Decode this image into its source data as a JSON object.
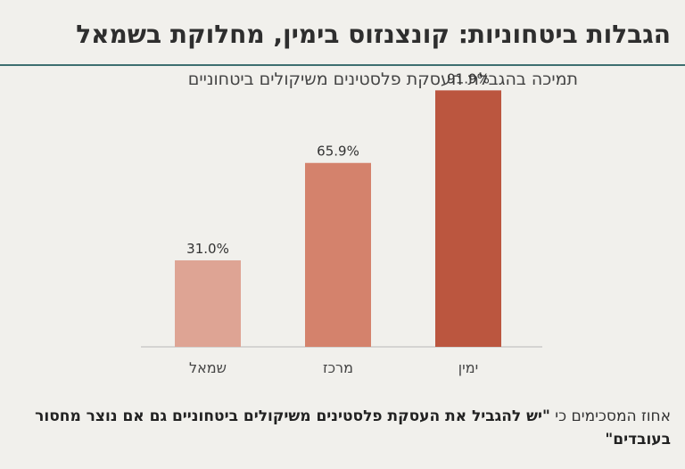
{
  "title": "הגבלות ביטחוניות: קונצנזוס בימין, מחלוקת בשמאל",
  "subtitle": "תמיכה בהגבלת העסקת פלסטינים משיקולים ביטחוניים",
  "footnote": {
    "prefix": "אחוז המסכימים כי ",
    "quote": "\"יש להגביל את העסקת פלסטינים משיקולים ביטחוניים גם אם נוצר מחסור בעובדים\""
  },
  "chart_data": {
    "type": "bar",
    "categories": [
      "שמאל",
      "מרכז",
      "ימין"
    ],
    "values": [
      31.0,
      65.9,
      91.9
    ],
    "value_labels": [
      "31.0%",
      "65.9%",
      "91.9%"
    ],
    "colors": [
      "#dea494",
      "#d4826c",
      "#bb563f"
    ],
    "ylim": [
      0,
      100
    ],
    "grid": false,
    "legend": "none"
  }
}
